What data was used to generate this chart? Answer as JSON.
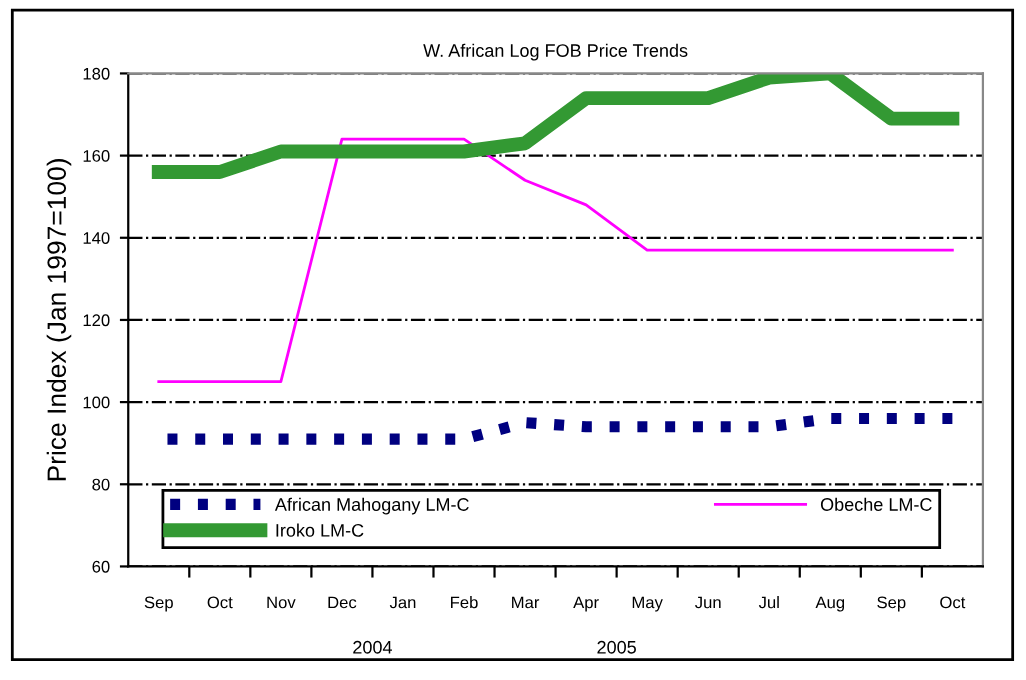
{
  "chart_data": {
    "type": "line",
    "title": "W. African Log FOB Price Trends",
    "ylabel": "Price Index (Jan 1997=100)",
    "categories": [
      "Sep",
      "Oct",
      "Nov",
      "Dec",
      "Jan",
      "Feb",
      "Mar",
      "Apr",
      "May",
      "Jun",
      "Jul",
      "Aug",
      "Sep",
      "Oct"
    ],
    "series": [
      {
        "name": "African Mahogany LM-C",
        "color": "#000080",
        "line_style": "dotted",
        "values": [
          91,
          91,
          91,
          91,
          91,
          91,
          95,
          94,
          94,
          94,
          94,
          96,
          96,
          96
        ]
      },
      {
        "name": "Obeche LM-C",
        "color": "#ff00ff",
        "line_style": "solid",
        "values": [
          105,
          105,
          105,
          164,
          164,
          164,
          154,
          148,
          137,
          137,
          137,
          137,
          137,
          137
        ]
      },
      {
        "name": "Iroko LM-C",
        "color": "#339933",
        "line_style": "solid",
        "values": [
          156,
          156,
          161,
          161,
          161,
          161,
          163,
          174,
          174,
          174,
          179,
          180,
          169,
          169
        ]
      }
    ],
    "ylim": [
      60,
      180
    ],
    "yticks": [
      60,
      80,
      100,
      120,
      140,
      160,
      180
    ],
    "grid": "y",
    "legend": "bottom",
    "marker": "none",
    "annotations": [
      "2004",
      "2005"
    ]
  }
}
